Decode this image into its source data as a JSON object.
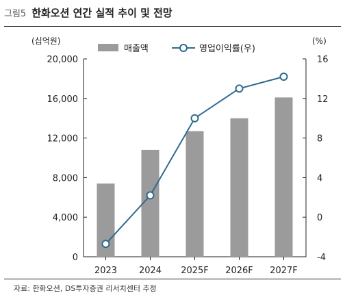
{
  "header": {
    "figure_label": "그림5",
    "title": "한화오션 연간 실적 추이 및 전망"
  },
  "source": "자료: 한화오션, DS투자증권 리서치센터 추정",
  "chart_data": {
    "type": "bar+line",
    "categories": [
      "2023",
      "2024",
      "2025F",
      "2026F",
      "2027F"
    ],
    "series": [
      {
        "name": "매출액",
        "type": "bar",
        "axis": "left",
        "color": "#9b9b9b",
        "values": [
          7400,
          10800,
          12700,
          14000,
          16100
        ]
      },
      {
        "name": "영업이익률(우)",
        "type": "line",
        "axis": "right",
        "color": "#2e6a8e",
        "values": [
          -2.7,
          2.2,
          10.0,
          13.0,
          14.2
        ]
      }
    ],
    "left_axis": {
      "unit": "(십억원)",
      "min": 0,
      "max": 20000,
      "ticks": [
        0,
        4000,
        8000,
        12000,
        16000,
        20000
      ],
      "tick_labels": [
        "0",
        "4,000",
        "8,000",
        "12,000",
        "16,000",
        "20,000"
      ]
    },
    "right_axis": {
      "unit": "(%)",
      "min": -4,
      "max": 16,
      "ticks": [
        -4,
        0,
        4,
        8,
        12,
        16
      ],
      "tick_labels": [
        "-4",
        "0",
        "4",
        "8",
        "12",
        "16"
      ]
    },
    "legend_position": "top",
    "grid": false
  }
}
